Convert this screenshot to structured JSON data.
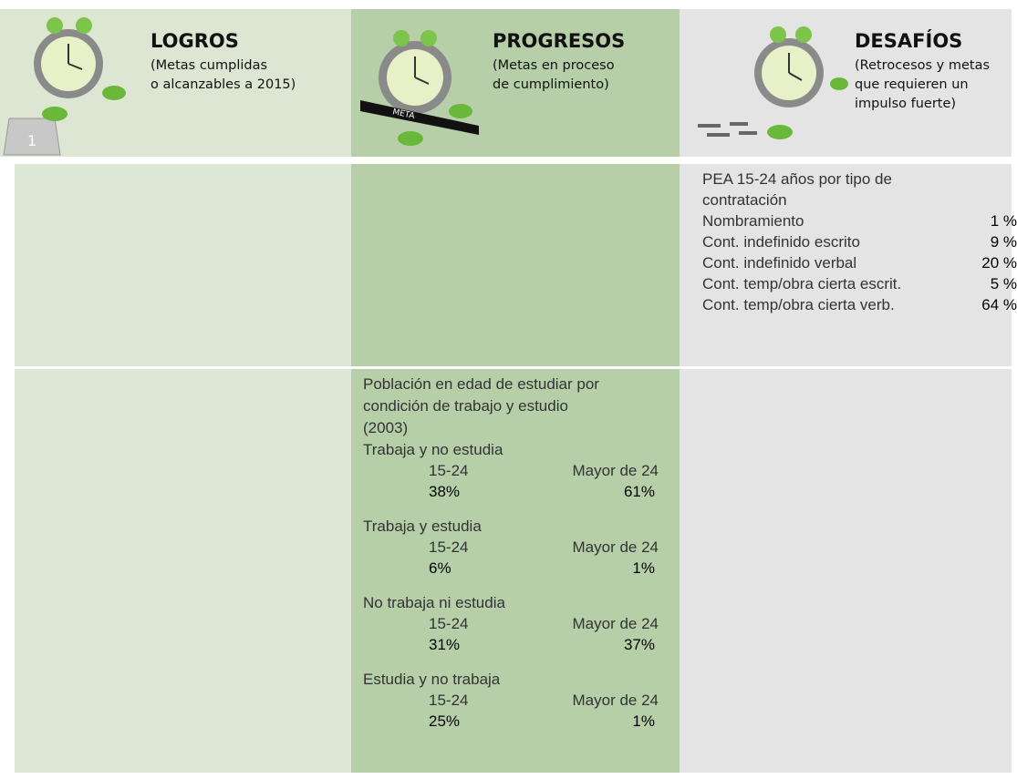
{
  "header": [
    {
      "title": "LOGROS",
      "subtitle": [
        "(Metas cumplidas",
        "o alcanzables a 2015)"
      ]
    },
    {
      "title": "PROGRESOS",
      "subtitle": [
        "(Metas en proceso",
        "de cumplimiento)"
      ]
    },
    {
      "title": "DESAFÍOS",
      "subtitle": [
        "(Retrocesos y metas",
        "que requieren un",
        "impulso fuerte)"
      ]
    }
  ],
  "meta_label": "META",
  "podium_label": "1",
  "contratacion": {
    "title": [
      "PEA 15-24 años por tipo de",
      "contratación"
    ],
    "items": [
      {
        "label": "Nombramiento",
        "value": "1 %"
      },
      {
        "label": "Cont. indefinido escrito",
        "value": "9 %"
      },
      {
        "label": "Cont. indefinido verbal",
        "value": "20 %"
      },
      {
        "label": "Cont. temp/obra cierta escrit.",
        "value": "5 %"
      },
      {
        "label": "Cont. temp/obra cierta verb.",
        "value": "64 %"
      }
    ]
  },
  "estudio": {
    "title": [
      "Población en edad de estudiar por",
      "condición de trabajo y estudio",
      "(2003)"
    ],
    "groups": [
      {
        "name": "Trabaja y no estudia",
        "labels": [
          "15-24",
          "Mayor de 24"
        ],
        "values": [
          "38%",
          "61%"
        ]
      },
      {
        "name": "Trabaja y estudia",
        "labels": [
          "15-24",
          "Mayor de 24"
        ],
        "values": [
          "6%",
          "1%"
        ]
      },
      {
        "name": "No trabaja ni estudia",
        "labels": [
          "15-24",
          "Mayor de 24"
        ],
        "values": [
          "31%",
          "37%"
        ]
      },
      {
        "name": "Estudia y no trabaja",
        "labels": [
          "15-24",
          "Mayor de 24"
        ],
        "values": [
          "25%",
          "1%"
        ]
      }
    ]
  }
}
